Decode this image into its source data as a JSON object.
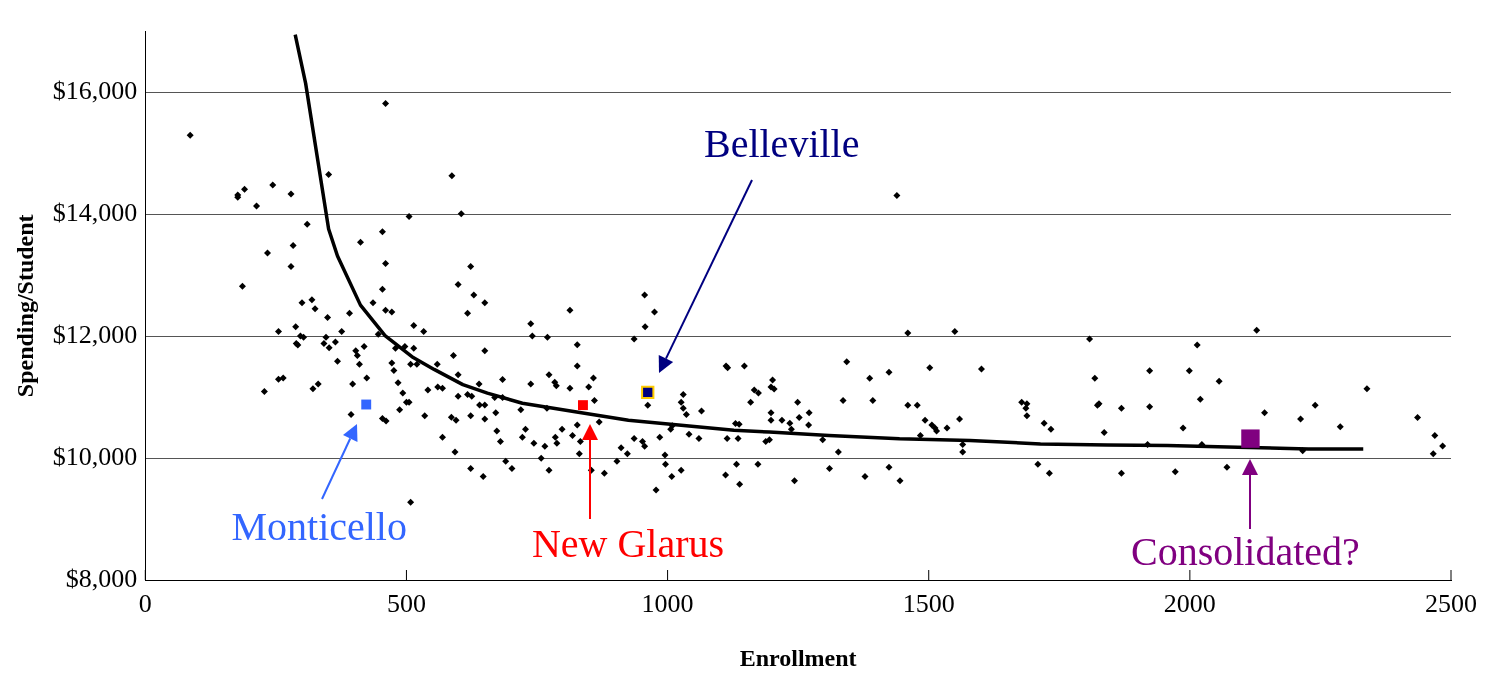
{
  "chart_data": {
    "type": "scatter",
    "xlabel": "Enrollment",
    "ylabel": "Spending/Student",
    "xlim": [
      0,
      2500
    ],
    "xticks": [
      0,
      500,
      1000,
      1500,
      2000,
      2500
    ],
    "ylim": [
      8000,
      17000
    ],
    "yticks": [
      {
        "value": 8000,
        "label": "$8,000"
      },
      {
        "value": 10000,
        "label": "$10,000"
      },
      {
        "value": 12000,
        "label": "$12,000"
      },
      {
        "value": 14000,
        "label": "$14,000"
      },
      {
        "value": 16000,
        "label": "$16,000"
      }
    ],
    "grid": "y",
    "legend": false,
    "series": [
      {
        "marker": "diamond",
        "color": "#000000",
        "x": [
          86,
          460,
          177,
          177,
          190,
          244,
          279,
          213,
          351,
          587,
          505,
          605,
          310,
          454,
          412,
          283,
          234,
          460,
          279,
          186,
          599,
          454,
          436,
          300,
          319,
          325,
          460,
          472,
          391,
          349,
          514,
          533,
          255,
          288,
          376,
          446,
          297,
          303,
          346,
          364,
          289,
          292,
          342,
          352,
          419,
          403,
          406,
          410,
          368,
          497,
          514,
          479,
          508,
          520,
          472,
          476,
          559,
          590,
          599,
          397,
          424,
          255,
          264,
          321,
          331,
          228,
          484,
          493,
          541,
          560,
          569,
          599,
          500,
          505,
          487,
          394,
          454,
          461,
          535,
          586,
          595,
          569,
          593,
          508,
          623,
          629,
          650,
          617,
          813,
          738,
          741,
          770,
          956,
          975,
          957,
          936,
          827,
          827,
          650,
          639,
          684,
          738,
          773,
          784,
          787,
          813,
          849,
          858,
          860,
          617,
          625,
          640,
          650,
          669,
          684,
          623,
          650,
          671,
          719,
          769,
          673,
          680,
          728,
          722,
          744,
          765,
          758,
          773,
          798,
          785,
          788,
          818,
          827,
          833,
          831,
          854,
          879,
          869,
          690,
          702,
          623,
          647,
          903,
          911,
          923,
          936,
          952,
          956,
          985,
          995,
          996,
          1008,
          1026,
          978,
          1006,
          1009,
          1041,
          1060,
          1030,
          1026,
          1030,
          1036,
          1065,
          962,
          1112,
          1115,
          1147,
          1159,
          1166,
          1174,
          1114,
          1135,
          1130,
          1137,
          1173,
          1111,
          1132,
          1138,
          1188,
          1439,
          1460,
          1550,
          1808,
          1343,
          1387,
          1424,
          1502,
          1601,
          1818,
          1201,
          1198,
          1204,
          1249,
          1336,
          1393,
          1460,
          1478,
          1678,
          1688,
          1686,
          1688,
          1823,
          1826,
          1198,
          1198,
          1219,
          1234,
          1237,
          1252,
          1271,
          1270,
          1195,
          1297,
          1327,
          1493,
          1506,
          1512,
          1515,
          1535,
          1559,
          1484,
          1565,
          1565,
          1721,
          1734,
          1836,
          1243,
          1310,
          1378,
          1424,
          1445,
          1709,
          1731,
          2128,
          2014,
          1923,
          1999,
          2056,
          1869,
          1923,
          2020,
          2143,
          2339,
          2212,
          2240,
          2288,
          2436,
          1987,
          1919,
          2023,
          2469,
          2484,
          2466,
          2216,
          1869,
          1972,
          2071
        ],
        "values": [
          15300,
          15820,
          14317,
          14283,
          14411,
          14483,
          14333,
          14139,
          14656,
          14633,
          13967,
          14011,
          13839,
          13717,
          13544,
          13489,
          13367,
          13194,
          13144,
          12822,
          12850,
          12772,
          12550,
          12550,
          12600,
          12450,
          12428,
          12400,
          12378,
          12306,
          12178,
          12078,
          12078,
          12155,
          12078,
          12033,
          12005,
          11983,
          11983,
          11905,
          11883,
          11855,
          11883,
          11811,
          11833,
          11761,
          11683,
          11539,
          11589,
          11833,
          11805,
          11805,
          11539,
          11539,
          11561,
          11439,
          11539,
          11683,
          11367,
          11217,
          11317,
          11294,
          11317,
          11139,
          11217,
          11094,
          11239,
          11067,
          11117,
          11167,
          11145,
          11017,
          10917,
          10917,
          10794,
          10717,
          10650,
          10611,
          10694,
          10672,
          10622,
          10344,
          10100,
          9278,
          13144,
          12678,
          12550,
          12378,
          12428,
          12205,
          12005,
          11983,
          12678,
          12400,
          12155,
          11955,
          11861,
          11511,
          11761,
          11217,
          11289,
          11217,
          11367,
          11244,
          11189,
          11145,
          11167,
          11317,
          10944,
          11045,
          11017,
          10872,
          10872,
          10994,
          10994,
          10694,
          10644,
          10744,
          10794,
          10817,
          10444,
          10272,
          10472,
          10344,
          10244,
          10194,
          10000,
          9800,
          10472,
          10344,
          10244,
          10372,
          10544,
          10272,
          10072,
          9800,
          9750,
          10594,
          9950,
          9828,
          9828,
          9700,
          9950,
          10172,
          10072,
          10322,
          10272,
          10194,
          10344,
          10050,
          9900,
          9700,
          9800,
          9478,
          10472,
          10533,
          10394,
          10322,
          11045,
          10917,
          10817,
          10717,
          10772,
          10867,
          11511,
          11483,
          11511,
          10917,
          11117,
          11067,
          10322,
          10322,
          10567,
          10556,
          9900,
          9722,
          9900,
          9572,
          10272,
          14311,
          12055,
          12078,
          11955,
          11583,
          11311,
          11411,
          11483,
          11461,
          11311,
          11283,
          11167,
          11133,
          10917,
          10944,
          10944,
          10867,
          10867,
          10917,
          10894,
          10817,
          10694,
          10867,
          10894,
          10744,
          10622,
          10622,
          10572,
          10472,
          10667,
          10744,
          10544,
          10300,
          10300,
          10100,
          10622,
          10544,
          10494,
          10444,
          10494,
          10644,
          10372,
          10222,
          10100,
          10572,
          10472,
          10422,
          9628,
          9828,
          9700,
          9850,
          9628,
          9900,
          9750,
          12100,
          11856,
          11433,
          11433,
          11261,
          10817,
          10844,
          10967,
          10744,
          11139,
          10644,
          10867,
          10517,
          10667,
          10494,
          10222,
          10222,
          10372,
          10200,
          10072,
          10122,
          9750,
          9778,
          9850
        ]
      },
      {
        "type": "line",
        "marker": "none",
        "line_style": "solid",
        "color": "#000000",
        "x": [
          287,
          307,
          351,
          368,
          412,
          459,
          513,
          553,
          608,
          655,
          722,
          823,
          925,
          1026,
          1127,
          1195,
          1309,
          1444,
          1579,
          1714,
          1842,
          1957,
          2092,
          2227,
          2332
        ],
        "values": [
          16950,
          16150,
          13760,
          13317,
          12511,
          12011,
          11650,
          11456,
          11206,
          11067,
          10900,
          10761,
          10622,
          10539,
          10456,
          10428,
          10372,
          10317,
          10289,
          10233,
          10217,
          10206,
          10178,
          10150,
          10150
        ]
      },
      {
        "marker": "square",
        "color": "#3366ff",
        "x": [
          423
        ],
        "values": [
          10880
        ]
      },
      {
        "marker": "square",
        "color": "#ff0000",
        "x": [
          838
        ],
        "values": [
          10870
        ]
      },
      {
        "marker": "square",
        "color": "#000080",
        "x": [
          962
        ],
        "values": [
          11080
        ]
      },
      {
        "marker": "square",
        "color": "#800080",
        "x": [
          2116
        ],
        "values": [
          10320
        ]
      }
    ],
    "annotations": [
      "Monticello",
      "New Glarus",
      "Belleville",
      "Consolidated?"
    ]
  }
}
